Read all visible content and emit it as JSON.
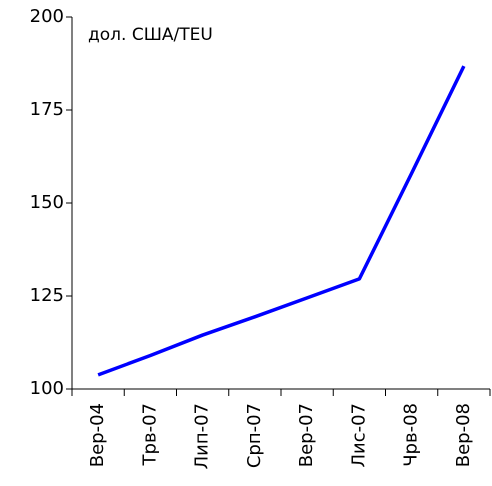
{
  "chart_data": {
    "type": "line",
    "y_label": "дол. США/TEU",
    "categories": [
      "Вер-04",
      "Трв-07",
      "Лип-07",
      "Срп-07",
      "Вер-07",
      "Лис-07",
      "Чрв-08",
      "Вер-08"
    ],
    "series": [
      {
        "name": "",
        "color": "#0000ff",
        "values": [
          103.8,
          109,
          114.5,
          119.4,
          124.5,
          129.6,
          158,
          186.8
        ]
      }
    ],
    "ylim": [
      100,
      200
    ],
    "yticks": [
      100,
      125,
      150,
      175,
      200
    ]
  }
}
